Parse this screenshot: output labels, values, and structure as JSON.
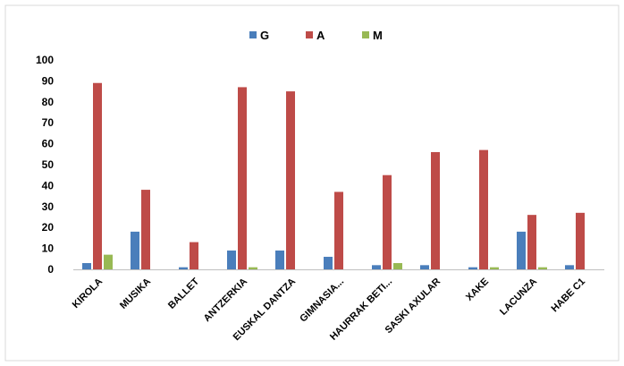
{
  "chart_data": {
    "type": "bar",
    "categories": [
      "KIROLA",
      "MUSIKA",
      "BALLET",
      "ANTZERKIA",
      "EUSKAL DANTZA",
      "GIMNASIA...",
      "HAURRAK BETI...",
      "SASKI AXULAR",
      "XAKE",
      "LACUNZA",
      "HABE C1"
    ],
    "series": [
      {
        "name": "G",
        "color": "#4A7EBB",
        "values": [
          3,
          18,
          1,
          9,
          9,
          6,
          2,
          2,
          1,
          18,
          2
        ]
      },
      {
        "name": "A",
        "color": "#BE4B48",
        "values": [
          89,
          38,
          13,
          87,
          85,
          37,
          45,
          56,
          57,
          26,
          27
        ]
      },
      {
        "name": "M",
        "color": "#98B954",
        "values": [
          7,
          0,
          0,
          1,
          0,
          0,
          3,
          0,
          1,
          1,
          0
        ]
      }
    ],
    "ylim": [
      0,
      100
    ],
    "yticks": [
      0,
      10,
      20,
      30,
      40,
      50,
      60,
      70,
      80,
      90,
      100
    ],
    "grid": false,
    "legend": "top-center",
    "xlabel": "",
    "ylabel": "",
    "title": ""
  }
}
